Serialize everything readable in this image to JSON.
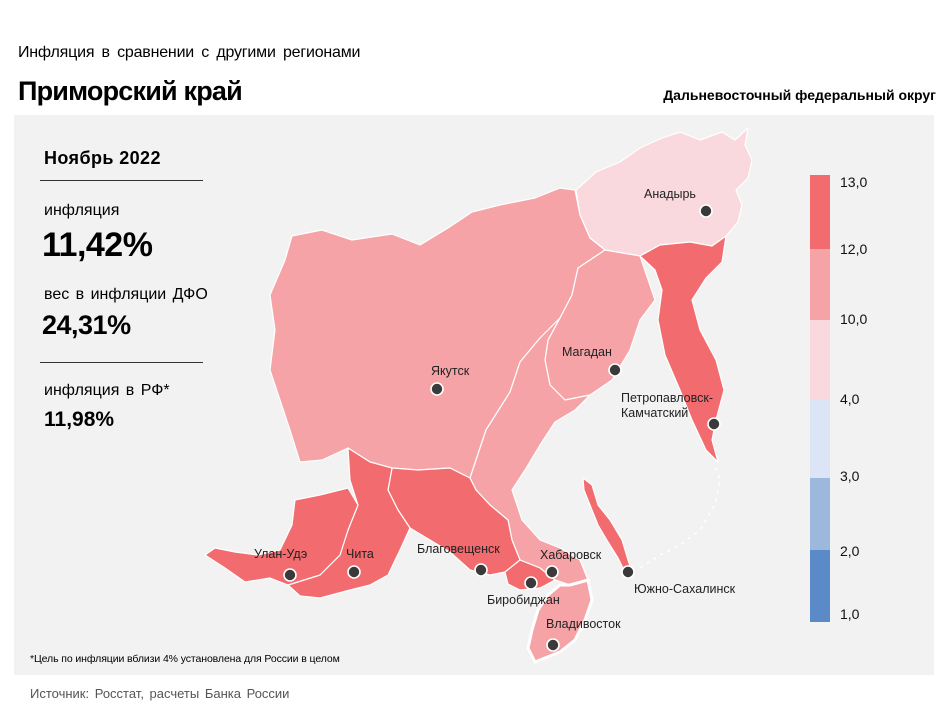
{
  "header": {
    "subtitle": "Инфляция  в сравнении  с другими  регионами",
    "title": "Приморский край",
    "district": "Дальневосточный федеральный округ"
  },
  "stats": {
    "period": "Ноябрь 2022",
    "inflation_label": "инфляция",
    "inflation_value": "11,42%",
    "weight_label": "вес в инфляции ДФО",
    "weight_value": "24,31%",
    "rf_label": "инфляция  в РФ*",
    "rf_value": "11,98%"
  },
  "colors": {
    "panel": "#f2f2f2",
    "high": "#f26b6e",
    "mid": "#f5a3a6",
    "low": "#f9d9de",
    "blue_light": "#dbe5f5",
    "blue_mid": "#9cb8dd",
    "blue_dark": "#5b8ac8"
  },
  "legend": {
    "ticks": [
      "13,0",
      "12,0",
      "10,0",
      "4,0",
      "3,0",
      "2,0",
      "1,0"
    ]
  },
  "regions": [
    {
      "name": "Чукотский АО",
      "color_class": "low"
    },
    {
      "name": "Республика Саха (Якутия)",
      "color_class": "mid"
    },
    {
      "name": "Магаданская область",
      "color_class": "mid"
    },
    {
      "name": "Камчатский край",
      "color_class": "high"
    },
    {
      "name": "Хабаровский край",
      "color_class": "mid"
    },
    {
      "name": "Амурская область",
      "color_class": "high"
    },
    {
      "name": "Забайкальский край",
      "color_class": "high"
    },
    {
      "name": "Республика Бурятия",
      "color_class": "high"
    },
    {
      "name": "Еврейская АО",
      "color_class": "high"
    },
    {
      "name": "Приморский край",
      "color_class": "mid"
    },
    {
      "name": "Сахалинская область",
      "color_class": "high"
    }
  ],
  "cities": [
    {
      "name": "Анадырь"
    },
    {
      "name": "Якутск"
    },
    {
      "name": "Магадан"
    },
    {
      "name": "Петропавловск-",
      "name2": "Камчатский"
    },
    {
      "name": "Улан-Удэ"
    },
    {
      "name": "Чита"
    },
    {
      "name": "Благовещенск"
    },
    {
      "name": "Хабаровск"
    },
    {
      "name": "Биробиджан"
    },
    {
      "name": "Владивосток"
    },
    {
      "name": "Южно-Сахалинск"
    }
  ],
  "footnote": "*Цель по инфляции вблизи 4% установлена для России в целом",
  "source": "Источник: Росстат, расчеты  Банка  России"
}
